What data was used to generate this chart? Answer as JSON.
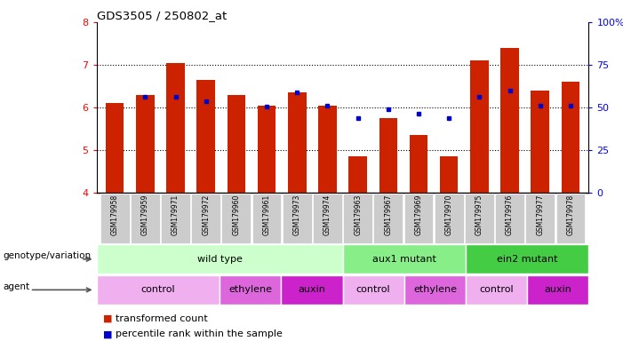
{
  "title": "GDS3505 / 250802_at",
  "samples": [
    "GSM179958",
    "GSM179959",
    "GSM179971",
    "GSM179972",
    "GSM179960",
    "GSM179961",
    "GSM179973",
    "GSM179974",
    "GSM179963",
    "GSM179967",
    "GSM179969",
    "GSM179970",
    "GSM179975",
    "GSM179976",
    "GSM179977",
    "GSM179978"
  ],
  "red_values": [
    6.1,
    6.3,
    7.05,
    6.65,
    6.3,
    6.05,
    6.35,
    6.05,
    4.85,
    5.75,
    5.35,
    4.85,
    7.1,
    7.4,
    6.4,
    6.6
  ],
  "blue_values": [
    null,
    6.25,
    6.25,
    6.15,
    null,
    6.02,
    6.35,
    6.05,
    5.75,
    5.95,
    5.85,
    5.75,
    6.25,
    6.4,
    6.05,
    6.05
  ],
  "ylim": [
    4,
    8
  ],
  "yticks": [
    4,
    5,
    6,
    7,
    8
  ],
  "right_yticks": [
    0,
    25,
    50,
    75,
    100
  ],
  "right_ytick_labels": [
    "0",
    "25",
    "50",
    "75",
    "100%"
  ],
  "genotype_groups": [
    {
      "label": "wild type",
      "start": 0,
      "end": 8,
      "color": "#ccffcc"
    },
    {
      "label": "aux1 mutant",
      "start": 8,
      "end": 12,
      "color": "#88ee88"
    },
    {
      "label": "ein2 mutant",
      "start": 12,
      "end": 16,
      "color": "#44cc44"
    }
  ],
  "agent_groups": [
    {
      "label": "control",
      "start": 0,
      "end": 4,
      "color": "#f0b0f0"
    },
    {
      "label": "ethylene",
      "start": 4,
      "end": 6,
      "color": "#dd66dd"
    },
    {
      "label": "auxin",
      "start": 6,
      "end": 8,
      "color": "#cc22cc"
    },
    {
      "label": "control",
      "start": 8,
      "end": 10,
      "color": "#f0b0f0"
    },
    {
      "label": "ethylene",
      "start": 10,
      "end": 12,
      "color": "#dd66dd"
    },
    {
      "label": "control",
      "start": 12,
      "end": 14,
      "color": "#f0b0f0"
    },
    {
      "label": "auxin",
      "start": 14,
      "end": 16,
      "color": "#cc22cc"
    }
  ],
  "bar_color": "#cc2200",
  "dot_color": "#0000cc",
  "tick_bg_color": "#cccccc"
}
